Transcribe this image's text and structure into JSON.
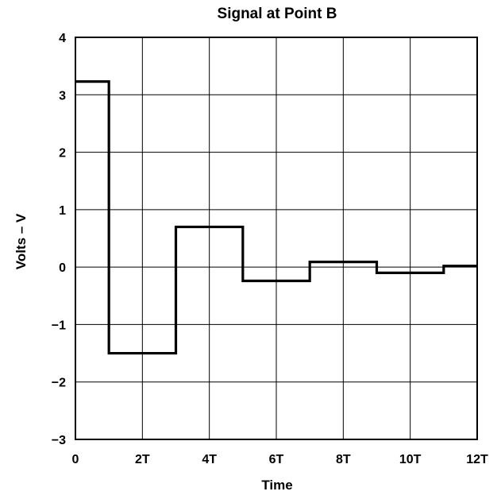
{
  "chart_data": {
    "type": "line",
    "step": "post",
    "title": "Signal at Point B",
    "xlabel": "Time",
    "ylabel": "Volts – V",
    "xlim": [
      0,
      12
    ],
    "ylim": [
      -3,
      4
    ],
    "grid": true,
    "x_ticks": [
      {
        "value": 0,
        "label": "0"
      },
      {
        "value": 2,
        "label": "2T"
      },
      {
        "value": 4,
        "label": "4T"
      },
      {
        "value": 6,
        "label": "6T"
      },
      {
        "value": 8,
        "label": "8T"
      },
      {
        "value": 10,
        "label": "10T"
      },
      {
        "value": 12,
        "label": "12T"
      }
    ],
    "y_ticks": [
      {
        "value": 4,
        "label": "4"
      },
      {
        "value": 3,
        "label": "3"
      },
      {
        "value": 2,
        "label": "2"
      },
      {
        "value": 1,
        "label": "1"
      },
      {
        "value": 0,
        "label": "0"
      },
      {
        "value": -1,
        "label": "−1"
      },
      {
        "value": -2,
        "label": "−2"
      },
      {
        "value": -3,
        "label": "−3"
      }
    ],
    "series": [
      {
        "x": [
          0,
          1,
          3,
          5,
          7,
          9,
          11,
          12
        ],
        "values": [
          3.23,
          -1.5,
          0.7,
          -0.24,
          0.09,
          -0.1,
          0.02,
          0.02
        ],
        "color": "#000000"
      }
    ]
  }
}
